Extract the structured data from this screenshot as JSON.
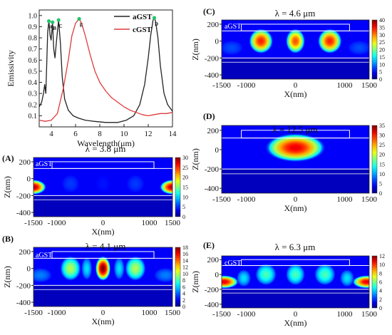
{
  "chart_data": [
    {
      "type": "line",
      "xlabel": "Wavelength(μm)",
      "ylabel": "Emissivity",
      "xlim": [
        3,
        14
      ],
      "ylim": [
        0,
        1.05
      ],
      "xticks": [
        "4",
        "6",
        "8",
        "10",
        "12",
        "14"
      ],
      "yticks": [
        "0.1",
        "0.2",
        "0.3",
        "0.4",
        "0.5",
        "0.6",
        "0.7",
        "0.8",
        "0.9",
        "1.0"
      ],
      "legend_position": "top-right",
      "peak_labels": [
        {
          "label": "A",
          "x": 3.8,
          "y": 0.95
        },
        {
          "label": "B",
          "x": 4.1,
          "y": 0.94
        },
        {
          "label": "C",
          "x": 4.6,
          "y": 0.96
        },
        {
          "label": "E",
          "x": 6.3,
          "y": 0.97
        },
        {
          "label": "D",
          "x": 12.5,
          "y": 0.98
        }
      ],
      "series": [
        {
          "name": "aGST",
          "color": "#222222",
          "x": [
            3.0,
            3.2,
            3.35,
            3.45,
            3.55,
            3.62,
            3.7,
            3.8,
            3.9,
            3.98,
            4.05,
            4.1,
            4.2,
            4.3,
            4.45,
            4.6,
            4.75,
            4.9,
            5.1,
            5.4,
            5.8,
            6.2,
            6.8,
            7.5,
            8.5,
            9.5,
            10.2,
            10.8,
            11.3,
            11.7,
            12.0,
            12.2,
            12.4,
            12.5,
            12.6,
            12.8,
            13.0,
            13.3,
            13.6,
            14.0
          ],
          "y": [
            0.18,
            0.22,
            0.3,
            0.38,
            0.3,
            0.55,
            0.85,
            0.95,
            0.82,
            0.78,
            0.86,
            0.94,
            0.7,
            0.62,
            0.8,
            0.96,
            0.75,
            0.45,
            0.25,
            0.15,
            0.1,
            0.08,
            0.06,
            0.05,
            0.04,
            0.04,
            0.06,
            0.1,
            0.2,
            0.38,
            0.62,
            0.82,
            0.96,
            0.98,
            0.95,
            0.8,
            0.55,
            0.3,
            0.2,
            0.14
          ]
        },
        {
          "name": "cGST",
          "color": "#e03a3a",
          "x": [
            3.0,
            3.5,
            4.0,
            4.5,
            5.0,
            5.4,
            5.7,
            6.0,
            6.2,
            6.3,
            6.5,
            6.8,
            7.2,
            7.6,
            8.0,
            8.5,
            9.0,
            9.5,
            10.0,
            10.5,
            11.0,
            11.5,
            12.0,
            12.5,
            13.0,
            13.5,
            14.0
          ],
          "y": [
            0.06,
            0.05,
            0.06,
            0.12,
            0.35,
            0.6,
            0.82,
            0.93,
            0.96,
            0.97,
            0.93,
            0.82,
            0.65,
            0.5,
            0.4,
            0.32,
            0.26,
            0.22,
            0.18,
            0.15,
            0.13,
            0.11,
            0.1,
            0.11,
            0.12,
            0.12,
            0.13
          ]
        }
      ]
    },
    {
      "type": "heatmap",
      "panel": "(A)",
      "title": "λ = 3.8 μm",
      "material": "aGST",
      "xlabel": "X(nm)",
      "ylabel": "Z(nm)",
      "xticks": [
        "-1500",
        "-1000",
        "0",
        "1000",
        "1500"
      ],
      "yticks": [
        "200",
        "0",
        "-200",
        "-400"
      ],
      "colorbar_ticks": [
        "0",
        "5",
        "10",
        "15",
        "20",
        "25",
        "30"
      ],
      "colorbar_max": 30,
      "field_pattern": "edges"
    },
    {
      "type": "heatmap",
      "panel": "(B)",
      "title": "λ = 4.1 μm",
      "material": "aGST",
      "xlabel": "X(nm)",
      "ylabel": "Z(nm)",
      "xticks": [
        "-1500",
        "-1000",
        "0",
        "1000",
        "1500"
      ],
      "yticks": [
        "200",
        "0",
        "-200",
        "-400"
      ],
      "colorbar_ticks": [
        "0",
        "2",
        "4",
        "6",
        "8",
        "10",
        "12",
        "14",
        "16",
        "18"
      ],
      "colorbar_max": 18,
      "field_pattern": "center-strong"
    },
    {
      "type": "heatmap",
      "panel": "(C)",
      "title": "λ = 4.6 μm",
      "material": "aGST",
      "xlabel": "X(nm)",
      "ylabel": "Z(nm)",
      "xticks": [
        "-1500",
        "-1000",
        "0",
        "1000",
        "1500"
      ],
      "yticks": [
        "200",
        "0",
        "-200",
        "-400"
      ],
      "colorbar_ticks": [
        "0",
        "5",
        "10",
        "15",
        "20",
        "25",
        "30",
        "35",
        "40"
      ],
      "colorbar_max": 40,
      "field_pattern": "three-lobes"
    },
    {
      "type": "heatmap",
      "panel": "(D)",
      "title": "λ = 12.5 μm",
      "material": "",
      "xlabel": "X(nm)",
      "ylabel": "Z(nm)",
      "xticks": [
        "-1500",
        "-1000",
        "0",
        "1000",
        "1500"
      ],
      "yticks": [
        "200",
        "0",
        "-200",
        "-400"
      ],
      "colorbar_ticks": [
        "0",
        "5",
        "10",
        "15",
        "20",
        "25",
        "30",
        "35"
      ],
      "colorbar_max": 35,
      "field_pattern": "single-blob"
    },
    {
      "type": "heatmap",
      "panel": "(E)",
      "title": "λ = 6.3 μm",
      "material": "cGST",
      "xlabel": "X(nm)",
      "ylabel": "Z(nm)",
      "xticks": [
        "-1500",
        "-1000",
        "0",
        "1000",
        "1500"
      ],
      "yticks": [
        "200",
        "0",
        "-200",
        "-400"
      ],
      "colorbar_ticks": [
        "0",
        "2",
        "4",
        "6",
        "8",
        "10",
        "12"
      ],
      "colorbar_max": 12,
      "field_pattern": "edges-and-center"
    }
  ]
}
